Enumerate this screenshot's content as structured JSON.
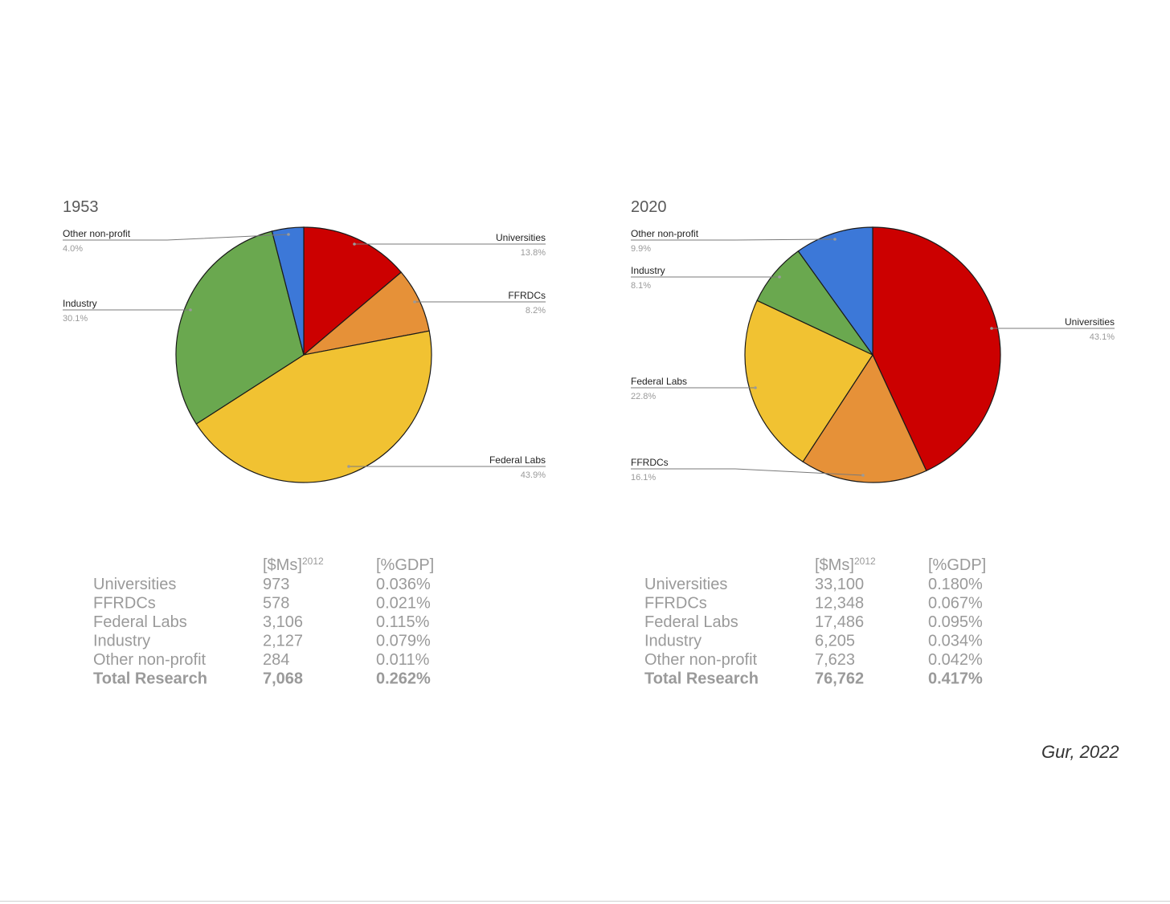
{
  "chart_data": [
    {
      "type": "pie",
      "title": "1953",
      "categories": [
        "Universities",
        "FFRDCs",
        "Federal Labs",
        "Industry",
        "Other non-profit"
      ],
      "values": [
        13.8,
        8.2,
        43.9,
        30.1,
        4.0
      ],
      "labels": [
        "13.8%",
        "8.2%",
        "43.9%",
        "30.1%",
        "4.0%"
      ],
      "colors": [
        "#cc0000",
        "#e69138",
        "#f1c232",
        "#6aa84f",
        "#3c78d8"
      ],
      "table": {
        "header_usd": "[$Ms]",
        "header_usd_sup": "2012",
        "header_gdp": "[%GDP]",
        "rows": [
          {
            "name": "Universities",
            "usd": "973",
            "gdp": "0.036%"
          },
          {
            "name": "FFRDCs",
            "usd": "578",
            "gdp": "0.021%"
          },
          {
            "name": "Federal Labs",
            "usd": "3,106",
            "gdp": "0.115%"
          },
          {
            "name": "Industry",
            "usd": "2,127",
            "gdp": "0.079%"
          },
          {
            "name": "Other non-profit",
            "usd": "284",
            "gdp": "0.011%"
          }
        ],
        "total": {
          "name": "Total Research",
          "usd": "7,068",
          "gdp": "0.262%"
        }
      }
    },
    {
      "type": "pie",
      "title": "2020",
      "categories": [
        "Universities",
        "FFRDCs",
        "Federal Labs",
        "Industry",
        "Other non-profit"
      ],
      "values": [
        43.1,
        16.1,
        22.8,
        8.1,
        9.9
      ],
      "labels": [
        "43.1%",
        "16.1%",
        "22.8%",
        "8.1%",
        "9.9%"
      ],
      "colors": [
        "#cc0000",
        "#e69138",
        "#f1c232",
        "#6aa84f",
        "#3c78d8"
      ],
      "table": {
        "header_usd": "[$Ms]",
        "header_usd_sup": "2012",
        "header_gdp": "[%GDP]",
        "rows": [
          {
            "name": "Universities",
            "usd": "33,100",
            "gdp": "0.180%"
          },
          {
            "name": "FFRDCs",
            "usd": "12,348",
            "gdp": "0.067%"
          },
          {
            "name": "Federal Labs",
            "usd": "17,486",
            "gdp": "0.095%"
          },
          {
            "name": "Industry",
            "usd": "6,205",
            "gdp": "0.034%"
          },
          {
            "name": "Other non-profit",
            "usd": "7,623",
            "gdp": "0.042%"
          }
        ],
        "total": {
          "name": "Total Research",
          "usd": "76,762",
          "gdp": "0.417%"
        }
      }
    }
  ],
  "credit": "Gur, 2022"
}
